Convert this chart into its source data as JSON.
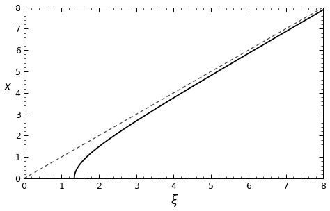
{
  "title": "",
  "xlabel": "ξ",
  "ylabel": "x",
  "xlim": [
    0,
    8
  ],
  "ylim": [
    0,
    8
  ],
  "xticks": [
    0,
    1,
    2,
    3,
    4,
    5,
    6,
    7,
    8
  ],
  "yticks": [
    0,
    1,
    2,
    3,
    4,
    5,
    6,
    7,
    8
  ],
  "xi0": 1.3416,
  "dashed_slope": 1.0,
  "solid_color": "#000000",
  "dashed_color": "#444444",
  "background_color": "#ffffff",
  "linewidth_solid": 1.3,
  "linewidth_dashed": 0.9,
  "xlabel_fontsize": 12,
  "ylabel_fontsize": 12,
  "tick_fontsize": 9,
  "figsize": [
    4.74,
    3.04
  ],
  "dpi": 100
}
